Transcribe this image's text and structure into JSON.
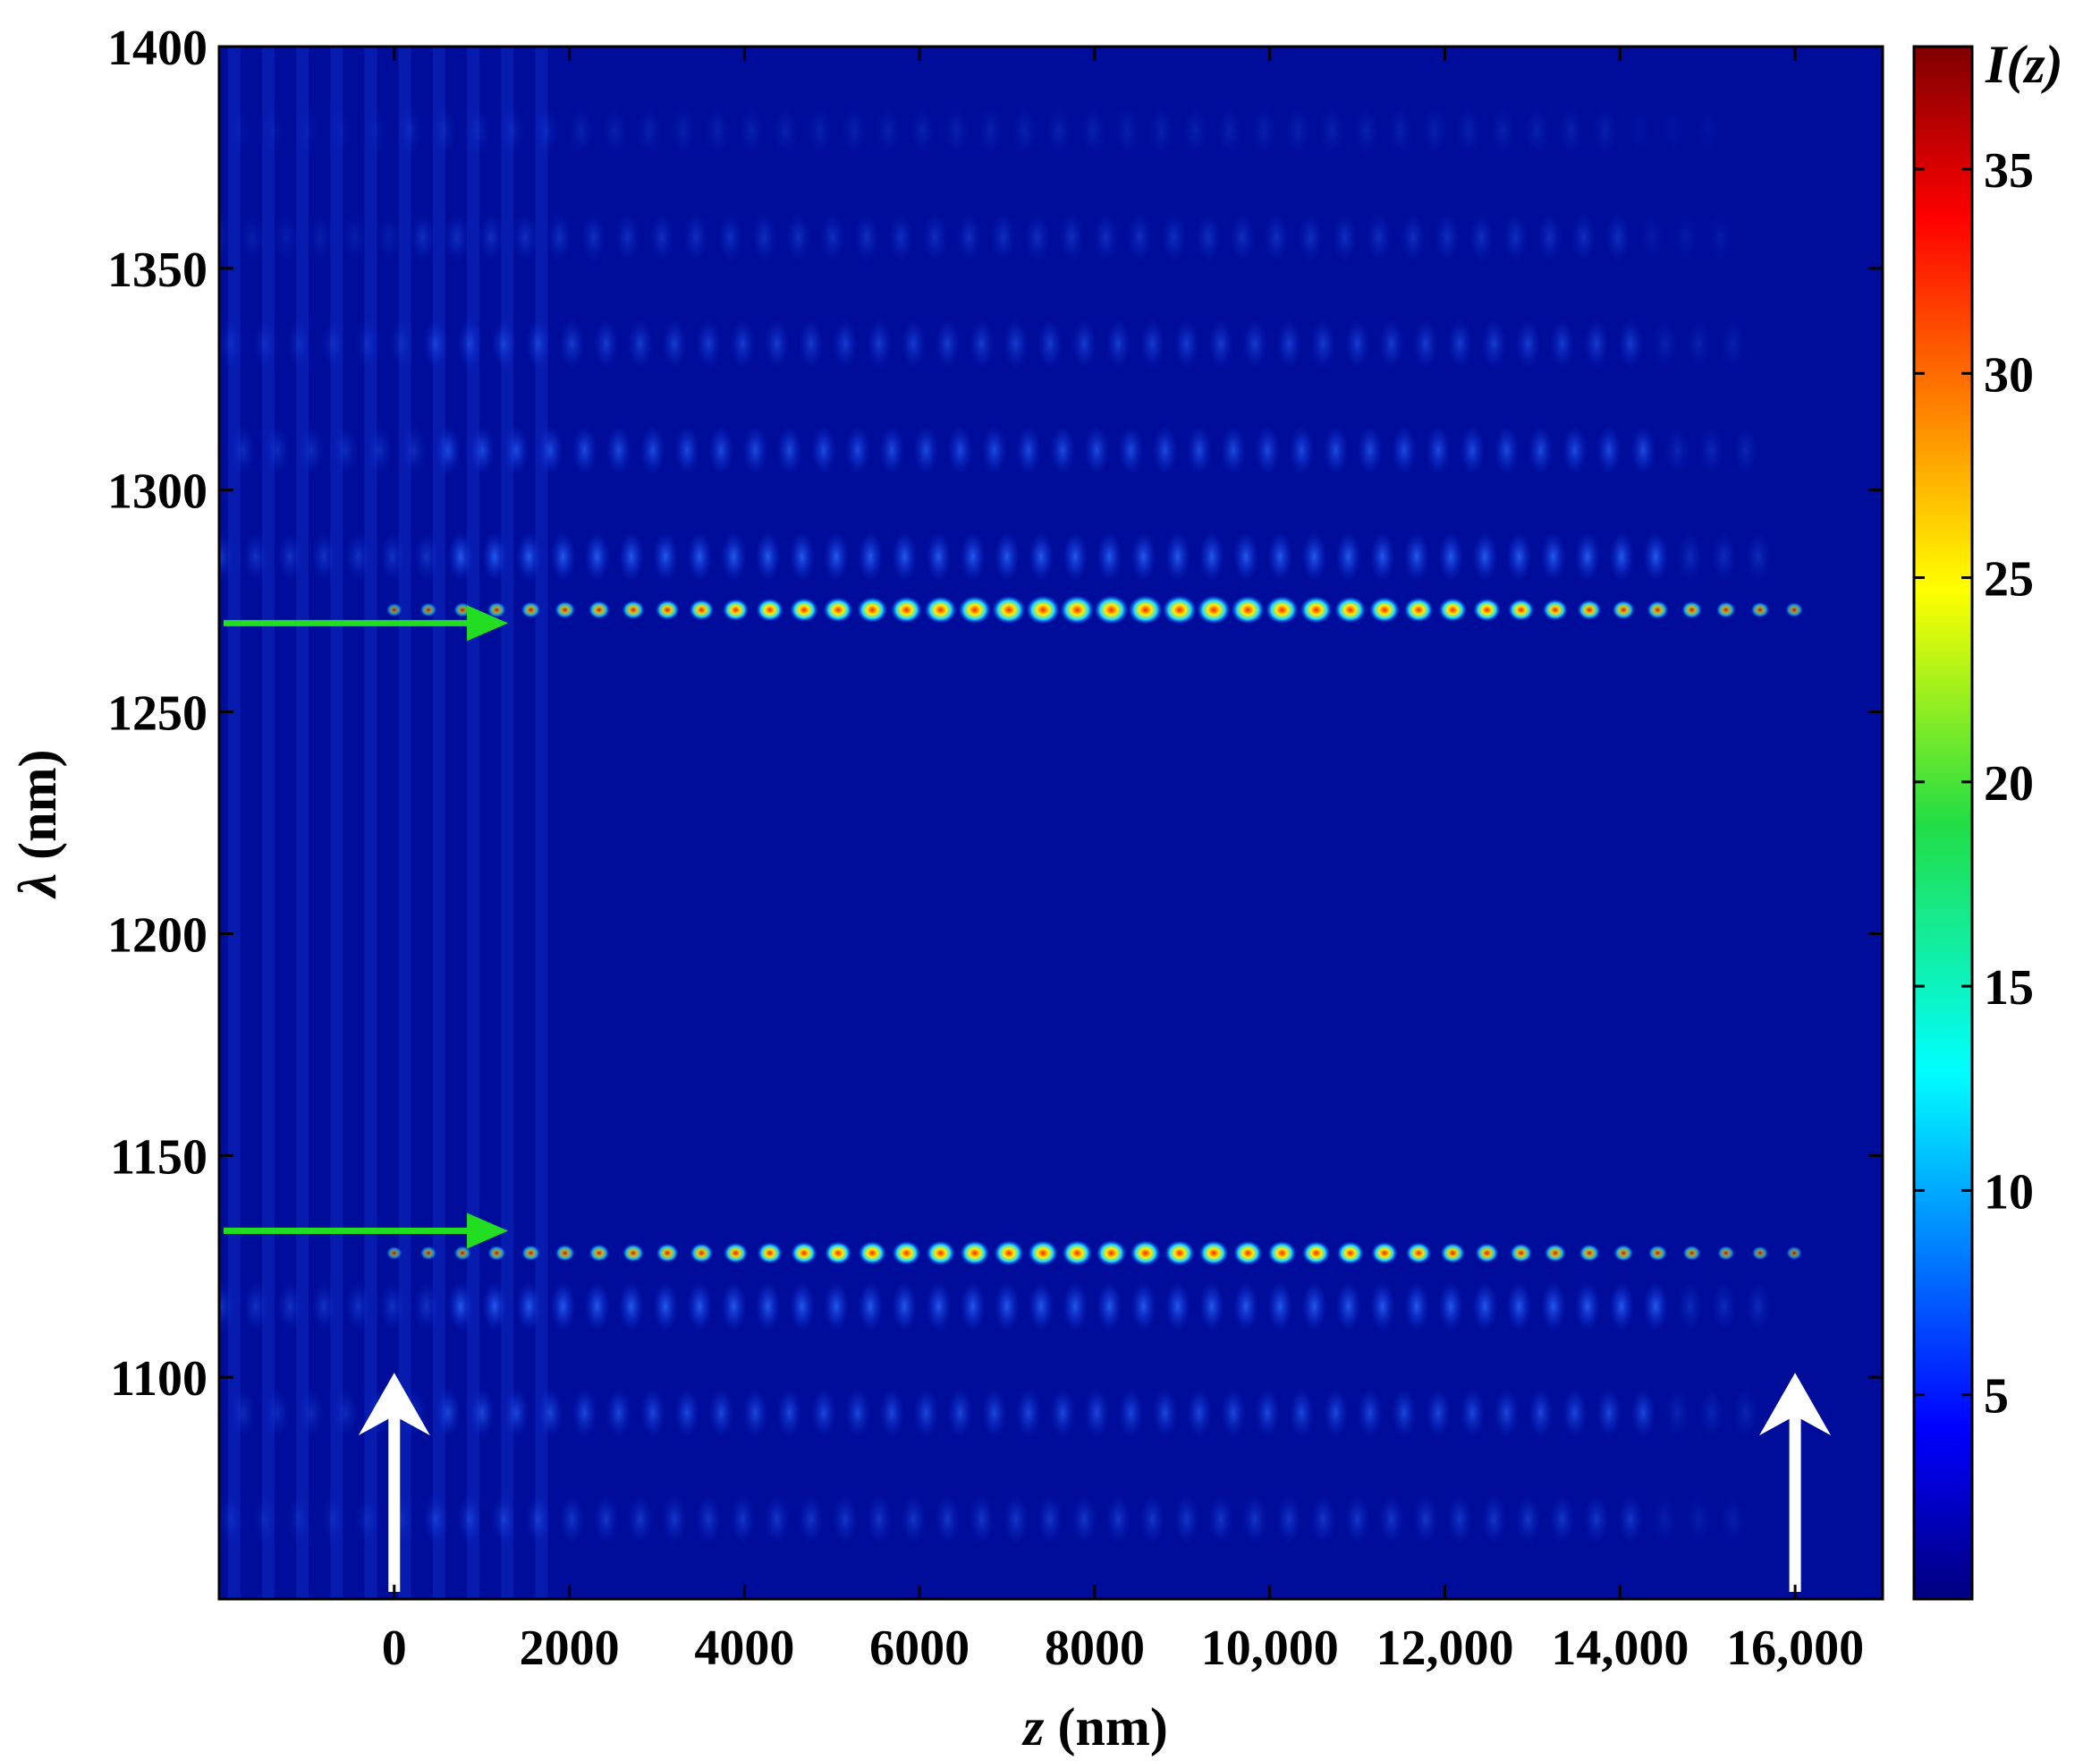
{
  "chart_data": {
    "type": "heatmap",
    "title": "",
    "xlabel": {
      "symbol": "z",
      "unit": " (nm)"
    },
    "ylabel": {
      "symbol": "λ",
      "unit": " (nm)"
    },
    "xlim": [
      -2000,
      17000
    ],
    "ylim": [
      1050,
      1400
    ],
    "x_ticks": [
      0,
      2000,
      4000,
      6000,
      8000,
      10000,
      12000,
      14000,
      16000
    ],
    "x_tick_labels": [
      "0",
      "2000",
      "4000",
      "6000",
      "8000",
      "10,000",
      "12,000",
      "14,000",
      "16,000"
    ],
    "y_ticks": [
      1100,
      1150,
      1200,
      1250,
      1300,
      1350,
      1400
    ],
    "y_tick_labels": [
      "1100",
      "1150",
      "1200",
      "1250",
      "1300",
      "1350",
      "1400"
    ],
    "colorbar": {
      "label": "I(z)",
      "range": [
        0,
        38
      ],
      "ticks": [
        5,
        10,
        15,
        20,
        25,
        30,
        35
      ],
      "tick_labels": [
        "5",
        "10",
        "15",
        "20",
        "25",
        "30",
        "35"
      ],
      "colormap": "jet"
    },
    "band_gap_edges_nm": [
      1128,
      1273
    ],
    "band_gap_region_nm": [
      1128,
      1273
    ],
    "defect_modes": [
      {
        "lambda_nm": 1273,
        "z_start_nm": 0,
        "z_end_nm": 16000,
        "peak_z_nm": 8400,
        "peak_intensity": 36
      },
      {
        "lambda_nm": 1128,
        "z_start_nm": 0,
        "z_end_nm": 16000,
        "peak_z_nm": 8000,
        "peak_intensity": 30
      }
    ],
    "annotations": [
      {
        "type": "arrow",
        "color": "#22dd22",
        "direction": "right",
        "lambda_nm": 1270
      },
      {
        "type": "arrow",
        "color": "#22dd22",
        "direction": "right",
        "lambda_nm": 1133
      },
      {
        "type": "arrow",
        "color": "#ffffff",
        "direction": "up",
        "z_nm": 0
      },
      {
        "type": "arrow",
        "color": "#ffffff",
        "direction": "up",
        "z_nm": 16000
      }
    ],
    "colors": {
      "background": "#000d9a",
      "frame": "#000000"
    }
  }
}
